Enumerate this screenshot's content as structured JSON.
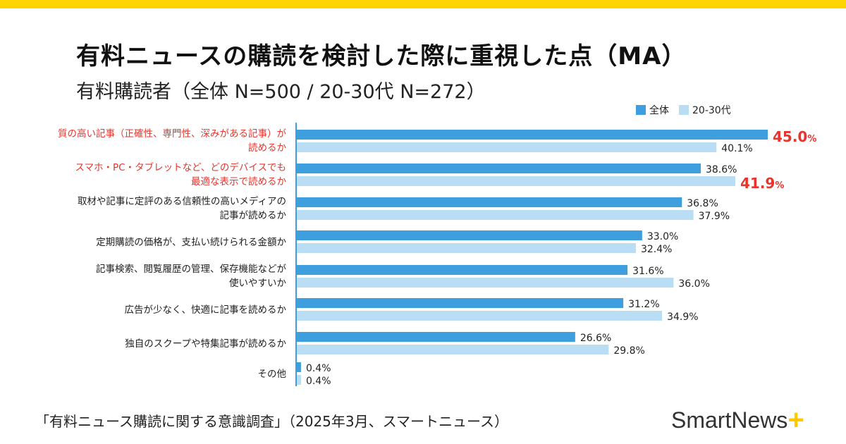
{
  "title": "有料ニュースの購読を検討した際に重視した点（MA）",
  "subtitle": "有料購読者（全体 N=500 / 20-30代 N=272）",
  "footer": "「有料ニュース購読に関する意識調査」（2025年3月、スマートニュース）",
  "logo": "SmartNews",
  "colors": {
    "all": "#3f9fde",
    "young": "#b9ddf3",
    "highlight": "#e8342c",
    "brand_yellow": "#ffd400"
  },
  "chart_data": {
    "type": "bar",
    "orientation": "horizontal",
    "xlim": [
      0,
      45
    ],
    "grid": false,
    "legend_position": "top-right",
    "categories": [
      [
        "質の高い記事（正確性、専門性、深みがある記事）が",
        "読めるか"
      ],
      [
        "スマホ・PC・タブレットなど、どのデバイスでも",
        "最適な表示で読めるか"
      ],
      [
        "取材や記事に定評のある信頼性の高いメディアの",
        "記事が読めるか"
      ],
      [
        "定期購読の価格が、支払い続けられる金額か"
      ],
      [
        "記事検索、閲覧履歴の管理、保存機能などが",
        "使いやすいか"
      ],
      [
        "広告が少なく、快適に記事を読めるか"
      ],
      [
        "独自のスクープや特集記事が読めるか"
      ],
      [
        "その他"
      ]
    ],
    "highlighted_categories": [
      0,
      1
    ],
    "series": [
      {
        "name": "全体",
        "values": [
          45.0,
          38.6,
          36.8,
          33.0,
          31.6,
          31.2,
          26.6,
          0.4
        ],
        "highlight_index": 0
      },
      {
        "name": "20-30代",
        "values": [
          40.1,
          41.9,
          37.9,
          32.4,
          36.0,
          34.9,
          29.8,
          0.4
        ],
        "highlight_index": 1
      }
    ],
    "unit": "%"
  }
}
